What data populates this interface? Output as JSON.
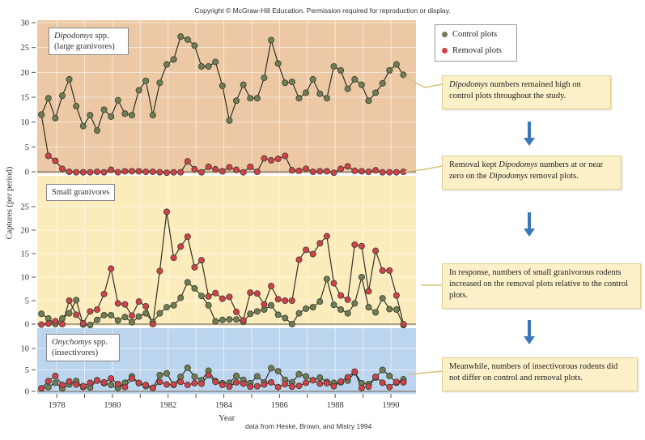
{
  "header": {
    "copyright": "Copyright © McGraw-Hill Education. Permission required for reproduction or display."
  },
  "legend": {
    "items": [
      {
        "label": "Control plots",
        "color": "#6f7d55"
      },
      {
        "label": "Removal plots",
        "color": "#d2404a"
      }
    ]
  },
  "callouts": [
    {
      "id": "c1",
      "parts": [
        {
          "t": "Dipodomys",
          "i": true
        },
        {
          "t": " numbers remained high on control plots throughout the study."
        }
      ]
    },
    {
      "id": "c2",
      "parts": [
        {
          "t": "Removal kept "
        },
        {
          "t": "Dipodomys",
          "i": true
        },
        {
          "t": " numbers at or near zero on the "
        },
        {
          "t": "Dipodomys",
          "i": true
        },
        {
          "t": " removal plots."
        }
      ]
    },
    {
      "id": "c3",
      "parts": [
        {
          "t": "In response, numbers of small granivorous rodents increased on the removal plots relative to the control plots."
        }
      ]
    },
    {
      "id": "c4",
      "parts": [
        {
          "t": "Meanwhile, numbers of insectivorous rodents did not differ on control and removal plots."
        }
      ]
    }
  ],
  "arrow_color": "#3a78b8",
  "source": "data from Heske, Brown, and Mistry 1994",
  "chart_data": {
    "type": "line",
    "title": "",
    "xlabel": "Year",
    "ylabel": "Captures (per period)",
    "x_ticks": [
      "1978",
      "1980",
      "1982",
      "1984",
      "1986",
      "1988",
      "1990"
    ],
    "xlim": [
      1977.3,
      1990.9
    ],
    "grid": true,
    "legend_position": "right",
    "series_colors": {
      "control": "#6f7d55",
      "removal": "#d2404a"
    },
    "panels": [
      {
        "name": "large-granivores",
        "label_italic": "Dipodomys",
        "label_rest": " spp.",
        "label_line2": "(large granivores)",
        "bg": "#ecc9a4",
        "ylim": [
          0,
          30
        ],
        "y_ticks": [
          "0",
          "5",
          "10",
          "15",
          "20",
          "25",
          "30"
        ],
        "x": [
          1977.45,
          1977.7,
          1977.95,
          1978.2,
          1978.45,
          1978.7,
          1978.95,
          1979.2,
          1979.45,
          1979.7,
          1979.95,
          1980.2,
          1980.45,
          1980.7,
          1980.95,
          1981.2,
          1981.45,
          1981.7,
          1981.95,
          1982.2,
          1982.45,
          1982.7,
          1982.95,
          1983.2,
          1983.45,
          1983.7,
          1983.95,
          1984.2,
          1984.45,
          1984.7,
          1984.95,
          1985.2,
          1985.45,
          1985.7,
          1985.95,
          1986.2,
          1986.45,
          1986.7,
          1986.95,
          1987.2,
          1987.45,
          1987.7,
          1987.95,
          1988.2,
          1988.45,
          1988.7,
          1988.95,
          1989.2,
          1989.45,
          1989.7,
          1989.95,
          1990.2,
          1990.45
        ],
        "control": [
          11.5,
          14.8,
          10.8,
          15.3,
          18.6,
          13.2,
          9.2,
          11.4,
          8.3,
          12.5,
          11.1,
          14.4,
          11.7,
          11.4,
          16.4,
          18.3,
          11.4,
          17.9,
          21.6,
          22.6,
          27.2,
          26.6,
          25.4,
          21.2,
          21.2,
          22.1,
          17.3,
          10.3,
          14.3,
          17.5,
          14.8,
          14.8,
          18.9,
          26.5,
          21.8,
          17.9,
          18.1,
          14.8,
          15.9,
          18.6,
          15.7,
          14.8,
          21.2,
          20.4,
          16.7,
          18.6,
          17.5,
          14.3,
          15.9,
          17.8,
          20.4,
          21.6,
          19.5
        ],
        "removal": [
          11.5,
          3.2,
          2.2,
          0.6,
          0.0,
          -0.1,
          -0.1,
          -0.1,
          0.0,
          -0.1,
          0.4,
          -0.1,
          0.1,
          0.1,
          0.1,
          0.0,
          0.0,
          -0.1,
          -0.2,
          -0.1,
          -0.1,
          2.1,
          0.5,
          -0.1,
          1.0,
          0.5,
          0.1,
          0.9,
          0.4,
          -0.1,
          1.0,
          0.0,
          2.7,
          2.3,
          2.6,
          3.2,
          0.3,
          0.2,
          0.6,
          0.0,
          0.1,
          0.1,
          -0.2,
          0.6,
          1.1,
          0.2,
          0.1,
          0.0,
          0.3,
          -0.1,
          -0.1,
          -0.1,
          0.0
        ]
      },
      {
        "name": "small-granivores",
        "label_italic": "",
        "label_rest": "Small granivores",
        "label_line2": "",
        "bg": "#fcecbc",
        "ylim": [
          0,
          25
        ],
        "y_ticks": [
          "0",
          "5",
          "10",
          "15",
          "20",
          "25"
        ],
        "x": [
          1977.45,
          1977.7,
          1977.95,
          1978.2,
          1978.45,
          1978.7,
          1978.95,
          1979.2,
          1979.45,
          1979.7,
          1979.95,
          1980.2,
          1980.45,
          1980.7,
          1980.95,
          1981.2,
          1981.45,
          1981.7,
          1981.95,
          1982.2,
          1982.45,
          1982.7,
          1982.95,
          1983.2,
          1983.45,
          1983.7,
          1983.95,
          1984.2,
          1984.45,
          1984.7,
          1984.95,
          1985.2,
          1985.45,
          1985.7,
          1985.95,
          1986.2,
          1986.45,
          1986.7,
          1986.95,
          1987.2,
          1987.45,
          1987.7,
          1987.95,
          1988.2,
          1988.45,
          1988.7,
          1988.95,
          1989.2,
          1989.45,
          1989.7,
          1989.95,
          1990.2,
          1990.45
        ],
        "control": [
          2.2,
          1.2,
          0.0,
          1.2,
          2.3,
          5.1,
          -0.1,
          -0.2,
          0.9,
          1.9,
          1.9,
          0.8,
          1.5,
          0.4,
          1.6,
          2.3,
          0.4,
          2.3,
          3.6,
          4.0,
          5.6,
          8.9,
          7.6,
          6.0,
          4.0,
          0.6,
          0.9,
          1.0,
          1.0,
          0.5,
          2.2,
          2.7,
          3.1,
          4.0,
          2.0,
          1.3,
          0.0,
          2.3,
          3.3,
          3.6,
          4.8,
          9.6,
          4.1,
          3.1,
          2.3,
          4.4,
          10.0,
          3.6,
          2.5,
          5.5,
          3.2,
          3.1,
          -0.2
        ],
        "removal": [
          -0.1,
          0.1,
          0.6,
          0.0,
          5.0,
          2.0,
          0.2,
          2.7,
          3.1,
          6.4,
          11.8,
          4.4,
          4.2,
          1.8,
          4.8,
          3.8,
          0.0,
          11.3,
          23.9,
          14.1,
          16.5,
          18.6,
          12.1,
          13.6,
          5.9,
          6.6,
          5.4,
          5.8,
          2.6,
          0.8,
          6.7,
          6.5,
          4.2,
          8.1,
          5.3,
          5.0,
          5.0,
          13.7,
          15.8,
          14.9,
          17.2,
          18.7,
          8.7,
          6.1,
          5.2,
          16.9,
          16.6,
          7.0,
          15.6,
          11.4,
          11.4,
          6.1,
          0
        ]
      },
      {
        "name": "insectivores",
        "label_italic": "Onychomys",
        "label_rest": " spp.",
        "label_line2": "(insectivores)",
        "bg": "#bcd5ee",
        "ylim": [
          0,
          10
        ],
        "y_ticks": [
          "0",
          "5",
          "10"
        ],
        "x": [
          1977.45,
          1977.7,
          1977.95,
          1978.2,
          1978.45,
          1978.7,
          1978.95,
          1979.2,
          1979.45,
          1979.7,
          1979.95,
          1980.2,
          1980.45,
          1980.7,
          1980.95,
          1981.2,
          1981.45,
          1981.7,
          1981.95,
          1982.2,
          1982.45,
          1982.7,
          1982.95,
          1983.2,
          1983.45,
          1983.7,
          1983.95,
          1984.2,
          1984.45,
          1984.7,
          1984.95,
          1985.2,
          1985.45,
          1985.7,
          1985.95,
          1986.2,
          1986.45,
          1986.7,
          1986.95,
          1987.2,
          1987.45,
          1987.7,
          1987.95,
          1988.2,
          1988.45,
          1988.7,
          1988.95,
          1989.2,
          1989.45,
          1989.7,
          1989.95,
          1990.2,
          1990.45
        ],
        "control": [
          0.7,
          1.0,
          2.0,
          0.7,
          1.6,
          2.4,
          1.0,
          0.9,
          2.6,
          1.9,
          1.5,
          0.8,
          2.0,
          3.5,
          1.9,
          1.2,
          0.8,
          3.8,
          4.2,
          1.5,
          3.4,
          5.5,
          3.4,
          2.6,
          4.8,
          2.4,
          1.9,
          2.0,
          3.6,
          2.7,
          1.9,
          3.5,
          2.1,
          5.4,
          4.7,
          2.7,
          2.1,
          4.0,
          3.5,
          2.6,
          3.2,
          2.2,
          2.0,
          2.1,
          2.5,
          4.4,
          1.9,
          1.7,
          3.2,
          5.0,
          3.6,
          2.0,
          2.8
        ],
        "removal": [
          0.7,
          2.4,
          3.6,
          1.5,
          2.3,
          1.6,
          1.2,
          2.0,
          2.5,
          2.1,
          3.0,
          1.7,
          1.0,
          3.0,
          2.0,
          1.5,
          0.8,
          2.2,
          1.6,
          1.6,
          2.2,
          1.5,
          1.9,
          1.8,
          3.8,
          2.2,
          1.5,
          1.1,
          2.1,
          1.8,
          1.1,
          1.2,
          1.6,
          2.1,
          1.0,
          1.7,
          1.1,
          1.3,
          2.0,
          2.6,
          1.8,
          1.9,
          1.2,
          2.3,
          3.3,
          4.6,
          0.8,
          1.1,
          3.4,
          2.0,
          1.0,
          2.2,
          2.1
        ]
      }
    ]
  }
}
